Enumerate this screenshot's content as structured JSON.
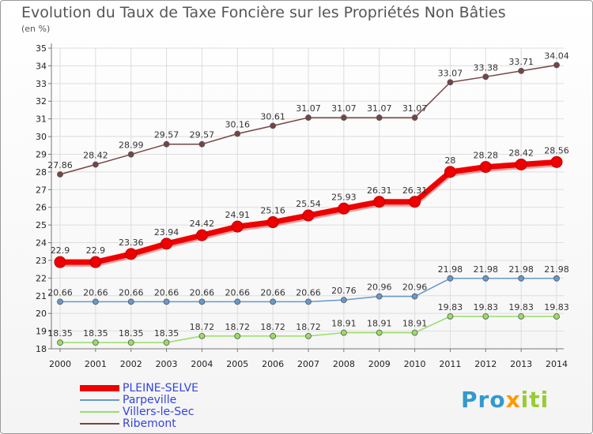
{
  "title": "Evolution du Taux de Taxe Foncière sur les Propriétés Non Bâties",
  "unit": "(en %)",
  "logo": "Proxiti",
  "colors": {
    "grid": "#dddddd",
    "axis": "#777777",
    "logo_p": "#3399cc",
    "logo_x": "#ff9900",
    "logo_rest": "#99cc33"
  },
  "chart_data": {
    "type": "line",
    "title": "Evolution du Taux de Taxe Foncière sur les Propriétés Non Bâties",
    "ylabel": "(en %)",
    "xlabel": "",
    "ylim": [
      18,
      35
    ],
    "yticks": [
      18,
      19,
      20,
      21,
      22,
      23,
      24,
      25,
      26,
      27,
      28,
      29,
      30,
      31,
      32,
      33,
      34,
      35
    ],
    "categories": [
      "2000",
      "2001",
      "2002",
      "2003",
      "2004",
      "2005",
      "2006",
      "2007",
      "2008",
      "2009",
      "2010",
      "2011",
      "2012",
      "2013",
      "2014"
    ],
    "series": [
      {
        "name": "PLEINE-SELVE",
        "color": "#ee0000",
        "line_width": 7,
        "values": [
          22.9,
          22.9,
          23.36,
          23.94,
          24.42,
          24.91,
          25.16,
          25.54,
          25.93,
          26.31,
          26.31,
          28.0,
          28.28,
          28.42,
          28.56
        ],
        "labels": [
          "22.9",
          "22.9",
          "23.36",
          "23.94",
          "24.42",
          "24.91",
          "25.16",
          "25.54",
          "25.93",
          "26.31",
          "26.31",
          "28",
          "28.28",
          "28.42",
          "28.56"
        ]
      },
      {
        "name": "Parpeville",
        "color": "#6699cc",
        "line_width": 1.5,
        "values": [
          20.66,
          20.66,
          20.66,
          20.66,
          20.66,
          20.66,
          20.66,
          20.66,
          20.76,
          20.96,
          20.96,
          21.98,
          21.98,
          21.98,
          21.98
        ],
        "labels": [
          "20.66",
          "20.66",
          "20.66",
          "20.66",
          "20.66",
          "20.66",
          "20.66",
          "20.66",
          "20.76",
          "20.96",
          "20.96",
          "21.98",
          "21.98",
          "21.98",
          "21.98"
        ]
      },
      {
        "name": "Villers-le-Sec",
        "color": "#99dd66",
        "line_width": 1.5,
        "values": [
          18.35,
          18.35,
          18.35,
          18.35,
          18.72,
          18.72,
          18.72,
          18.72,
          18.91,
          18.91,
          18.91,
          19.83,
          19.83,
          19.83,
          19.83
        ],
        "labels": [
          "18.35",
          "18.35",
          "18.35",
          "18.35",
          "18.72",
          "18.72",
          "18.72",
          "18.72",
          "18.91",
          "18.91",
          "18.91",
          "19.83",
          "19.83",
          "19.83",
          "19.83"
        ]
      },
      {
        "name": "Ribemont",
        "color": "#774444",
        "line_width": 1.5,
        "values": [
          27.86,
          28.42,
          28.99,
          29.57,
          29.57,
          30.16,
          30.61,
          31.07,
          31.07,
          31.07,
          31.07,
          33.07,
          33.38,
          33.71,
          34.04
        ],
        "labels": [
          "27.86",
          "28.42",
          "28.99",
          "29.57",
          "29.57",
          "30.16",
          "30.61",
          "31.07",
          "31.07",
          "31.07",
          "31.07",
          "33.07",
          "33.38",
          "33.71",
          "34.04"
        ]
      }
    ],
    "legend": [
      "PLEINE-SELVE",
      "Parpeville",
      "Villers-le-Sec",
      "Ribemont"
    ],
    "legend_position": "bottom-left",
    "grid": true
  }
}
